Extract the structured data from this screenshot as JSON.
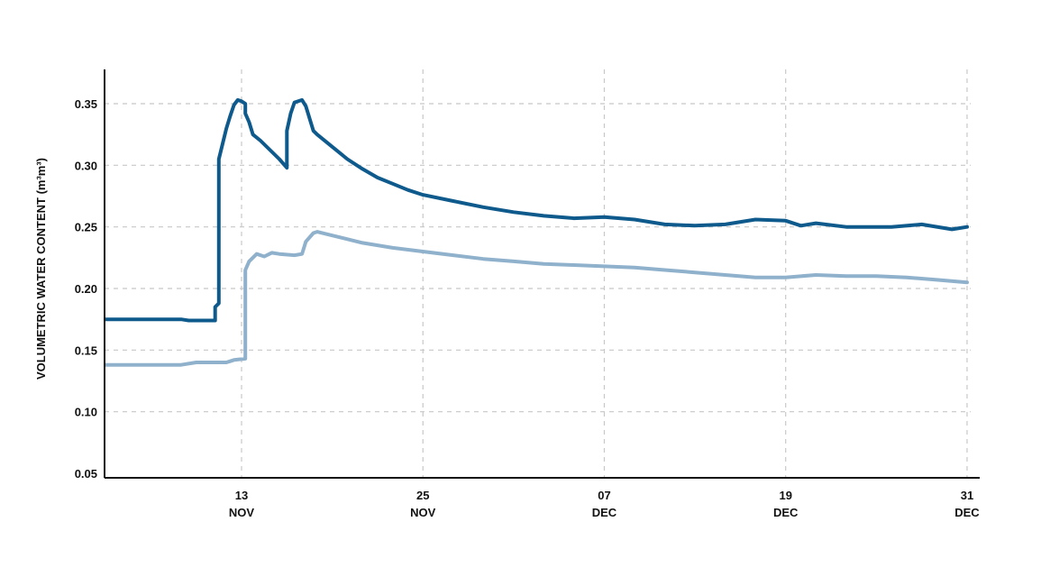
{
  "chart_data": {
    "type": "line",
    "ylabel": "VOLUMETRIC WATER CONTENT (m³m³)",
    "ylim": [
      0.05,
      0.35
    ],
    "yticks": [
      "0.05",
      "0.10",
      "0.15",
      "0.20",
      "0.25",
      "0.30",
      "0.35"
    ],
    "xticks": [
      {
        "day": 13,
        "month": "NOV"
      },
      {
        "day": 25,
        "month": "NOV"
      },
      {
        "day": "07",
        "month": "DEC"
      },
      {
        "day": 19,
        "month": "DEC"
      },
      {
        "day": 31,
        "month": "DEC"
      }
    ],
    "grid": true,
    "series": [
      {
        "color": "#0f5a8c",
        "points": [
          [
            "2023-11-04",
            0.175
          ],
          [
            "2023-11-09",
            0.175
          ],
          [
            "2023-11-09T12",
            0.174
          ],
          [
            "2023-11-11T06",
            0.174
          ],
          [
            "2023-11-11T06",
            0.185
          ],
          [
            "2023-11-11T12",
            0.188
          ],
          [
            "2023-11-11T12",
            0.305
          ],
          [
            "2023-11-12",
            0.33
          ],
          [
            "2023-11-12T06",
            0.34
          ],
          [
            "2023-11-12T12",
            0.349
          ],
          [
            "2023-11-12T18",
            0.353
          ],
          [
            "2023-11-13",
            0.352
          ],
          [
            "2023-11-13T06",
            0.35
          ],
          [
            "2023-11-13T06",
            0.342
          ],
          [
            "2023-11-13T12",
            0.335
          ],
          [
            "2023-11-13T18",
            0.325
          ],
          [
            "2023-11-14T06",
            0.32
          ],
          [
            "2023-11-15T12",
            0.305
          ],
          [
            "2023-11-16",
            0.298
          ],
          [
            "2023-11-16",
            0.328
          ],
          [
            "2023-11-16T06",
            0.342
          ],
          [
            "2023-11-16T12",
            0.351
          ],
          [
            "2023-11-17",
            0.353
          ],
          [
            "2023-11-17T06",
            0.348
          ],
          [
            "2023-11-17T12",
            0.338
          ],
          [
            "2023-11-17T18",
            0.328
          ],
          [
            "2023-11-18",
            0.325
          ],
          [
            "2023-11-19",
            0.315
          ],
          [
            "2023-11-20",
            0.305
          ],
          [
            "2023-11-21",
            0.297
          ],
          [
            "2023-11-22",
            0.29
          ],
          [
            "2023-11-23",
            0.285
          ],
          [
            "2023-11-24",
            0.28
          ],
          [
            "2023-11-25",
            0.276
          ],
          [
            "2023-11-27",
            0.271
          ],
          [
            "2023-11-29",
            0.266
          ],
          [
            "2023-12-01",
            0.262
          ],
          [
            "2023-12-03",
            0.259
          ],
          [
            "2023-12-05",
            0.257
          ],
          [
            "2023-12-07",
            0.258
          ],
          [
            "2023-12-09",
            0.256
          ],
          [
            "2023-12-11",
            0.252
          ],
          [
            "2023-12-13",
            0.251
          ],
          [
            "2023-12-15",
            0.252
          ],
          [
            "2023-12-17",
            0.256
          ],
          [
            "2023-12-19",
            0.255
          ],
          [
            "2023-12-20",
            0.251
          ],
          [
            "2023-12-21",
            0.253
          ],
          [
            "2023-12-23",
            0.25
          ],
          [
            "2023-12-26",
            0.25
          ],
          [
            "2023-12-28",
            0.252
          ],
          [
            "2023-12-30",
            0.248
          ],
          [
            "2023-12-31",
            0.25
          ]
        ]
      },
      {
        "color": "#8fb1cc",
        "points": [
          [
            "2023-11-04",
            0.138
          ],
          [
            "2023-11-09",
            0.138
          ],
          [
            "2023-11-10",
            0.14
          ],
          [
            "2023-11-12",
            0.14
          ],
          [
            "2023-11-12T12",
            0.142
          ],
          [
            "2023-11-13T06",
            0.143
          ],
          [
            "2023-11-13T06",
            0.165
          ],
          [
            "2023-11-13T06",
            0.215
          ],
          [
            "2023-11-13T12",
            0.222
          ],
          [
            "2023-11-14",
            0.228
          ],
          [
            "2023-11-14T12",
            0.226
          ],
          [
            "2023-11-15",
            0.229
          ],
          [
            "2023-11-15T12",
            0.228
          ],
          [
            "2023-11-16T12",
            0.227
          ],
          [
            "2023-11-17",
            0.228
          ],
          [
            "2023-11-17T06",
            0.238
          ],
          [
            "2023-11-17T18",
            0.245
          ],
          [
            "2023-11-18",
            0.246
          ],
          [
            "2023-11-19",
            0.243
          ],
          [
            "2023-11-21",
            0.237
          ],
          [
            "2023-11-23",
            0.233
          ],
          [
            "2023-11-25",
            0.23
          ],
          [
            "2023-11-27",
            0.227
          ],
          [
            "2023-11-29",
            0.224
          ],
          [
            "2023-12-01",
            0.222
          ],
          [
            "2023-12-03",
            0.22
          ],
          [
            "2023-12-05",
            0.219
          ],
          [
            "2023-12-07",
            0.218
          ],
          [
            "2023-12-09",
            0.217
          ],
          [
            "2023-12-11",
            0.215
          ],
          [
            "2023-12-13",
            0.213
          ],
          [
            "2023-12-15",
            0.211
          ],
          [
            "2023-12-17",
            0.209
          ],
          [
            "2023-12-19",
            0.209
          ],
          [
            "2023-12-21",
            0.211
          ],
          [
            "2023-12-23",
            0.21
          ],
          [
            "2023-12-25",
            0.21
          ],
          [
            "2023-12-27",
            0.209
          ],
          [
            "2023-12-29",
            0.207
          ],
          [
            "2023-12-31",
            0.205
          ]
        ]
      }
    ]
  }
}
